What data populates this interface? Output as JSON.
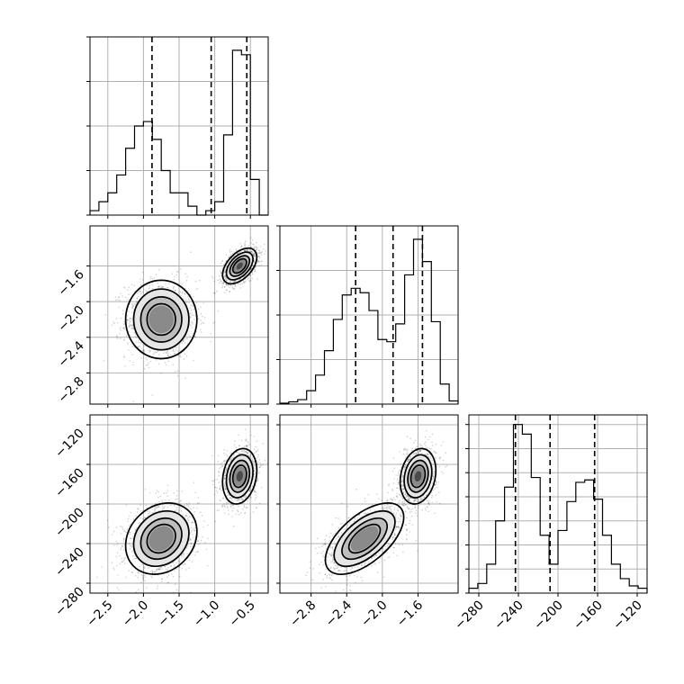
{
  "chart_data": {
    "type": "corner",
    "parameters": [
      {
        "range": [
          -2.75,
          -0.25
        ],
        "ticks": [
          -2.5,
          -2.0,
          -1.5,
          -1.0,
          -0.5
        ],
        "tick_labels": [
          "−2.5",
          "−2.0",
          "−1.5",
          "−1.0",
          "−0.5"
        ],
        "quantiles": [
          -1.88,
          -1.05,
          -0.55
        ],
        "histogram": [
          0.5,
          1.5,
          2.5,
          4.5,
          7.5,
          10,
          10.5,
          8.5,
          5,
          2.5,
          2.5,
          1,
          0,
          0.5,
          1.5,
          9,
          18.5,
          18,
          4,
          0
        ]
      },
      {
        "range": [
          -3.15,
          -1.15
        ],
        "ticks": [
          -2.8,
          -2.4,
          -2.0,
          -1.6
        ],
        "tick_labels": [
          "−2.8",
          "−2.4",
          "−2.0",
          "−1.6"
        ],
        "quantiles": [
          -2.3,
          -1.88,
          -1.55
        ],
        "histogram": [
          0.2,
          0.5,
          1,
          3,
          6.5,
          12,
          19,
          24.5,
          26,
          25,
          21,
          14.5,
          14,
          18,
          29,
          37,
          32,
          18.5,
          4.5,
          0.7
        ]
      },
      {
        "range": [
          -290,
          -110
        ],
        "ticks": [
          -280,
          -240,
          -200,
          -160,
          -120
        ],
        "tick_labels": [
          "−280",
          "−240",
          "−200",
          "−160",
          "−120"
        ],
        "quantiles": [
          -243,
          -208,
          -163
        ],
        "histogram": [
          1,
          2,
          6,
          15,
          22,
          35,
          33,
          24,
          12,
          6,
          13,
          19,
          23,
          23.5,
          19.5,
          12,
          6,
          3,
          1.5,
          1
        ]
      }
    ],
    "hist_ymax": [
      20,
      40,
      37
    ],
    "hist_yticks": [
      [
        0,
        5,
        10,
        15,
        20
      ],
      [
        0,
        10,
        20,
        30,
        40
      ],
      [
        0,
        5,
        10,
        15,
        20,
        25,
        30,
        35
      ]
    ],
    "modes": [
      {
        "center": [
          -1.75,
          -2.2,
          -235
        ],
        "sd": [
          0.25,
          0.22,
          18
        ],
        "rho": [
          0.0,
          0.2,
          0.6
        ],
        "weight": 0.5
      },
      {
        "center": [
          -0.65,
          -1.6,
          -172
        ],
        "sd": [
          0.12,
          0.1,
          14
        ],
        "rho": [
          0.5,
          0.2,
          0.2
        ],
        "weight": 0.5
      }
    ],
    "title": "",
    "xlabel": "",
    "ylabel": "",
    "grid": true,
    "legend": "none"
  }
}
